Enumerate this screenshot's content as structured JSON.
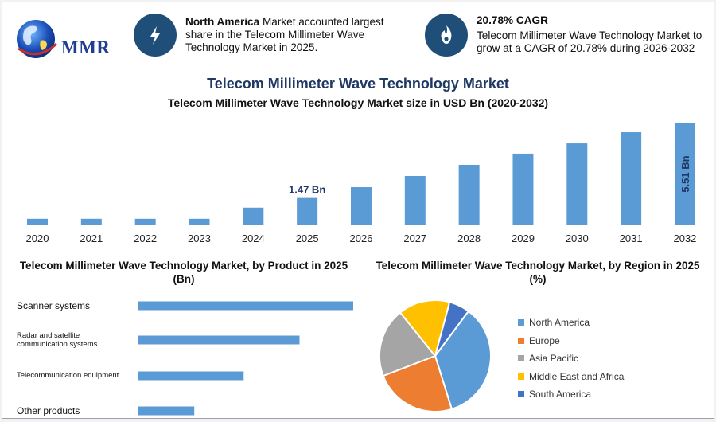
{
  "brand": {
    "logo_text": "MMR",
    "colors": {
      "navy": "#1f4e79",
      "bar": "#5b9bd5",
      "title": "#1f3864"
    }
  },
  "info_cards": [
    {
      "icon": "lightning-icon",
      "bold": "North America",
      "text": " Market accounted largest share in the Telecom Millimeter Wave Technology Market in 2025."
    },
    {
      "icon": "flame-icon",
      "bold": "20.78% CAGR",
      "text": "Telecom Millimeter Wave Technology Market to grow at a CAGR of 20.78% during 2026-2032"
    }
  ],
  "header": {
    "title": "Telecom Millimeter Wave Technology Market",
    "subtitle": "Telecom Millimeter Wave Technology Market size in USD Bn (2020-2032)"
  },
  "chart_data": [
    {
      "type": "bar",
      "title": "Telecom Millimeter Wave Technology Market size in USD Bn (2020-2032)",
      "categories": [
        "2020",
        "2021",
        "2022",
        "2023",
        "2024",
        "2025",
        "2026",
        "2027",
        "2028",
        "2029",
        "2030",
        "2031",
        "2032"
      ],
      "values": [
        0.35,
        0.35,
        0.35,
        0.35,
        0.95,
        1.47,
        2.05,
        2.65,
        3.25,
        3.85,
        4.4,
        5.0,
        5.51
      ],
      "data_labels": {
        "2025": "1.47 Bn",
        "2032": "5.51 Bn"
      },
      "ylim": [
        0,
        5.6
      ],
      "grid": false,
      "color": "#5b9bd5"
    },
    {
      "type": "bar",
      "orientation": "horizontal",
      "title": "Telecom Millimeter Wave Technology Market, by Product in 2025 (Bn)",
      "categories": [
        "Scanner systems",
        "Radar and satellite communication systems",
        "Telecommunication equipment",
        "Other products"
      ],
      "category_lines": [
        [
          "Scanner systems"
        ],
        [
          "Radar and satellite",
          "communication systems"
        ],
        [
          "Telecommunication equipment"
        ],
        [
          "Other products"
        ]
      ],
      "values": [
        1.0,
        0.75,
        0.49,
        0.26
      ],
      "color": "#5b9bd5"
    },
    {
      "type": "pie",
      "title": "Telecom Millimeter Wave Technology Market, by Region in 2025 (%)",
      "labels": [
        "North America",
        "Europe",
        "Asia Pacific",
        "Middle East and Africa",
        "South America"
      ],
      "values": [
        35,
        24,
        20,
        15,
        6
      ],
      "colors": [
        "#5b9bd5",
        "#ed7d31",
        "#a5a5a5",
        "#ffc000",
        "#4472c4"
      ],
      "legend_position": "right"
    }
  ]
}
